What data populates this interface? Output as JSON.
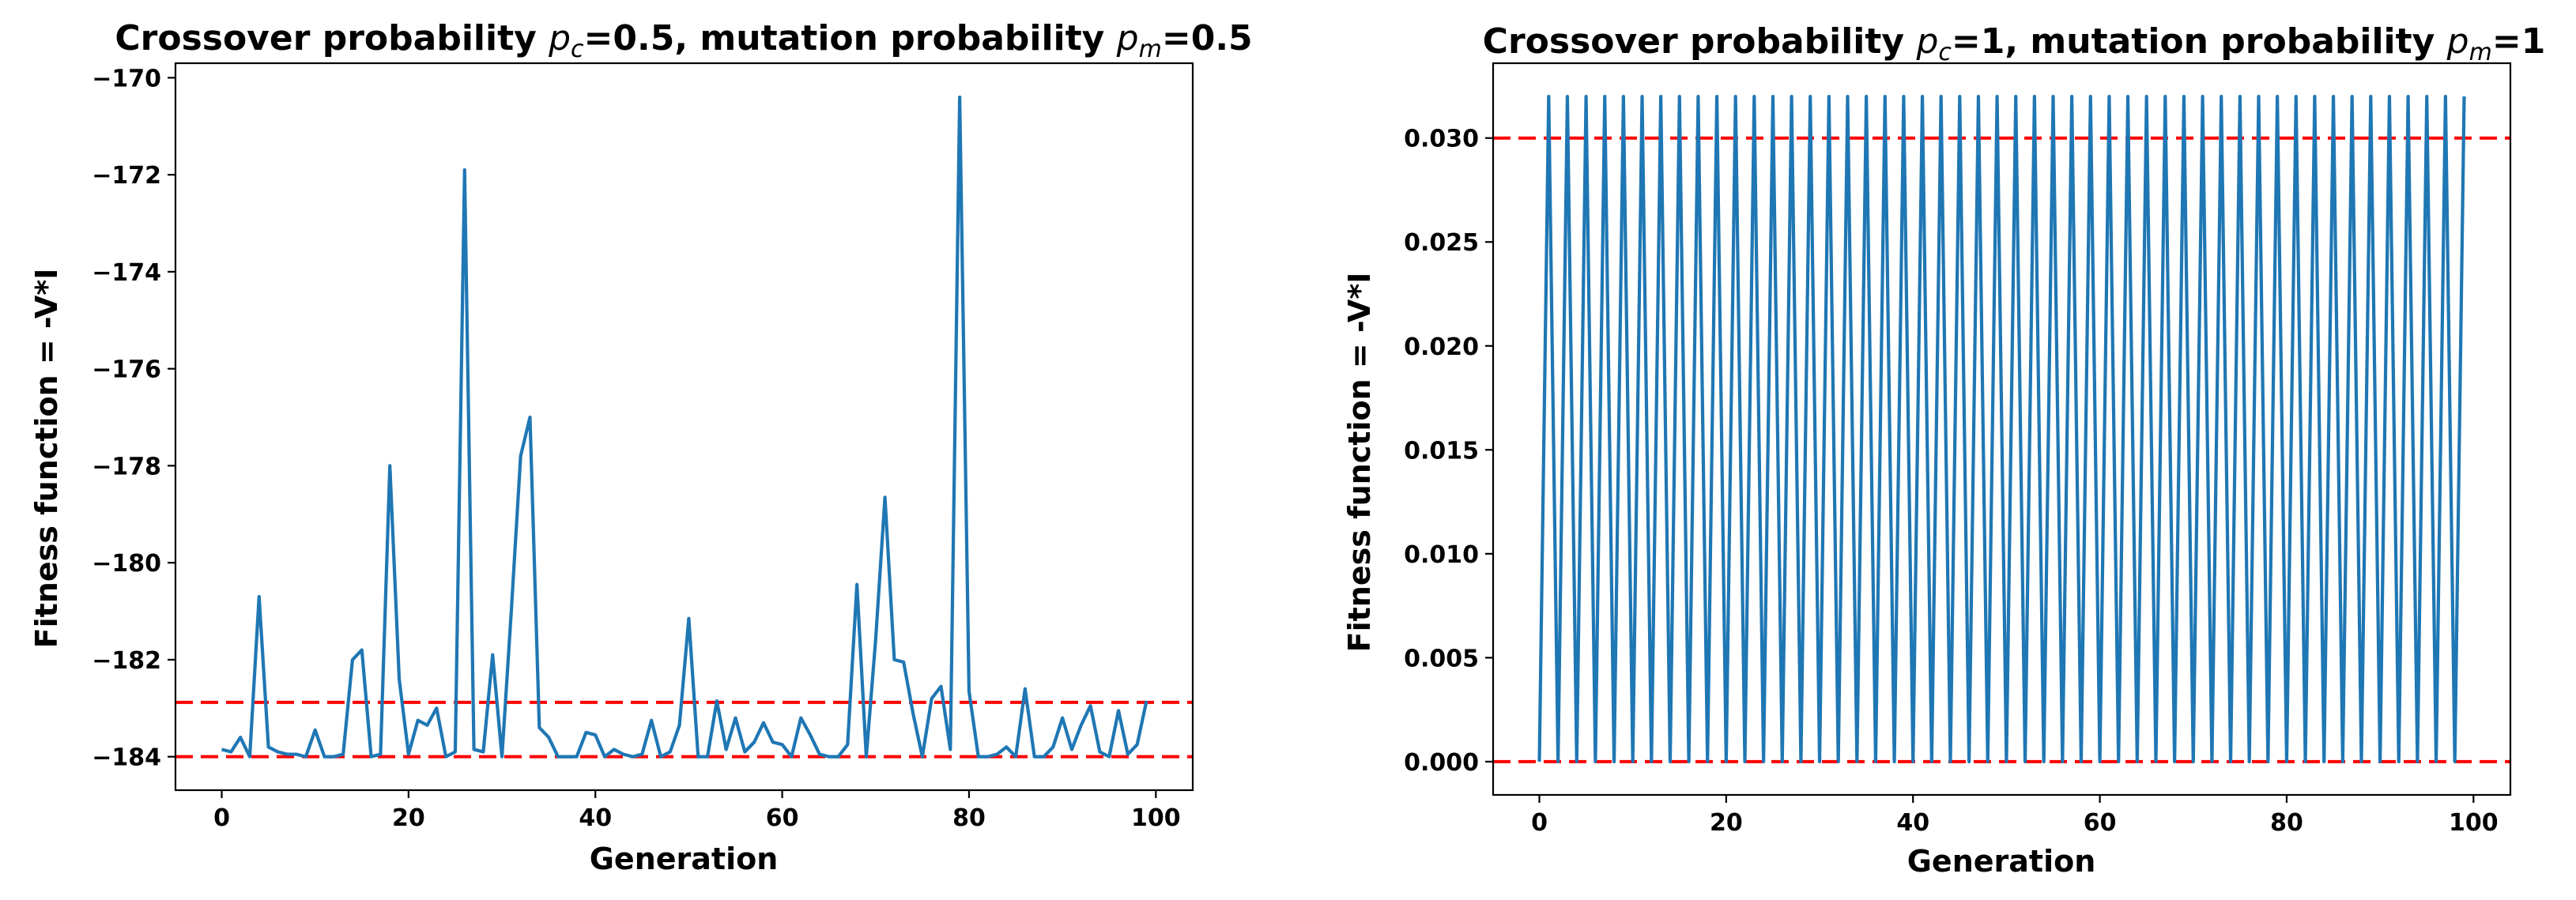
{
  "chart_data": [
    {
      "type": "line",
      "title_parts": {
        "a": "Crossover probability ",
        "pc": "p",
        "pc_sub": "c",
        "b": "=0.5, mutation probability ",
        "pm": "p",
        "pm_sub": "m",
        "c": "=0.5"
      },
      "xlabel": "Generation",
      "ylabel": "Fitness function = -V*I",
      "xlim": [
        -4.95,
        103.95
      ],
      "ylim": [
        -184.69,
        -169.7
      ],
      "xticks": [
        0,
        20,
        40,
        60,
        80,
        100
      ],
      "yticks": [
        -184,
        -182,
        -180,
        -178,
        -176,
        -174,
        -172,
        -170
      ],
      "x": [
        0,
        1,
        2,
        3,
        4,
        5,
        6,
        7,
        8,
        9,
        10,
        11,
        12,
        13,
        14,
        15,
        16,
        17,
        18,
        19,
        20,
        21,
        22,
        23,
        24,
        25,
        26,
        27,
        28,
        29,
        30,
        31,
        32,
        33,
        34,
        35,
        36,
        37,
        38,
        39,
        40,
        41,
        42,
        43,
        44,
        45,
        46,
        47,
        48,
        49,
        50,
        51,
        52,
        53,
        54,
        55,
        56,
        57,
        58,
        59,
        60,
        61,
        62,
        63,
        64,
        65,
        66,
        67,
        68,
        69,
        70,
        71,
        72,
        73,
        74,
        75,
        76,
        77,
        78,
        79,
        80,
        81,
        82,
        83,
        84,
        85,
        86,
        87,
        88,
        89,
        90,
        91,
        92,
        93,
        94,
        95,
        96,
        97,
        98,
        99
      ],
      "series": [
        {
          "name": "fitness",
          "values": [
            -183.85,
            -183.9,
            -183.6,
            -184.0,
            -180.7,
            -183.8,
            -183.9,
            -183.95,
            -183.95,
            -184.0,
            -183.45,
            -184.0,
            -184.0,
            -183.95,
            -182.0,
            -181.8,
            -184.0,
            -183.95,
            -178.0,
            -182.4,
            -183.95,
            -183.25,
            -183.35,
            -183.0,
            -184.0,
            -183.9,
            -171.9,
            -183.85,
            -183.9,
            -181.9,
            -184.0,
            -181.0,
            -177.8,
            -177.0,
            -183.4,
            -183.6,
            -184.0,
            -184.0,
            -184.0,
            -183.5,
            -183.55,
            -184.0,
            -183.85,
            -183.95,
            -184.0,
            -183.95,
            -183.25,
            -184.0,
            -183.9,
            -183.35,
            -181.15,
            -184.0,
            -184.0,
            -182.85,
            -183.85,
            -183.2,
            -183.9,
            -183.7,
            -183.3,
            -183.7,
            -183.75,
            -184.0,
            -183.2,
            -183.55,
            -183.95,
            -184.0,
            -184.0,
            -183.75,
            -180.45,
            -184.0,
            -181.6,
            -178.65,
            -182.0,
            -182.05,
            -183.1,
            -184.0,
            -182.8,
            -182.55,
            -183.85,
            -170.4,
            -182.65,
            -184.0,
            -184.0,
            -183.95,
            -183.8,
            -184.0,
            -182.6,
            -184.0,
            -184.0,
            -183.8,
            -183.2,
            -183.85,
            -183.35,
            -182.95,
            -183.9,
            -184.0,
            -183.05,
            -183.95,
            -183.75,
            -182.85
          ]
        }
      ],
      "reference_lines": [
        -184.0,
        -182.88
      ],
      "colors": {
        "series": "#1f77b4",
        "reference": "#ff0000"
      }
    },
    {
      "type": "line",
      "title_parts": {
        "a": "Crossover probability ",
        "pc": "p",
        "pc_sub": "c",
        "b": "=1, mutation probability ",
        "pm": "p",
        "pm_sub": "m",
        "c": "=1"
      },
      "xlabel": "Generation",
      "ylabel": "Fitness function = -V*I",
      "xlim": [
        -4.95,
        103.95
      ],
      "ylim": [
        -0.0016,
        0.0336
      ],
      "xticks": [
        0,
        20,
        40,
        60,
        80,
        100
      ],
      "yticks": [
        0.0,
        0.005,
        0.01,
        0.015,
        0.02,
        0.025,
        0.03
      ],
      "ytick_format": 3,
      "x": [
        0,
        1,
        2,
        3,
        4,
        5,
        6,
        7,
        8,
        9,
        10,
        11,
        12,
        13,
        14,
        15,
        16,
        17,
        18,
        19,
        20,
        21,
        22,
        23,
        24,
        25,
        26,
        27,
        28,
        29,
        30,
        31,
        32,
        33,
        34,
        35,
        36,
        37,
        38,
        39,
        40,
        41,
        42,
        43,
        44,
        45,
        46,
        47,
        48,
        49,
        50,
        51,
        52,
        53,
        54,
        55,
        56,
        57,
        58,
        59,
        60,
        61,
        62,
        63,
        64,
        65,
        66,
        67,
        68,
        69,
        70,
        71,
        72,
        73,
        74,
        75,
        76,
        77,
        78,
        79,
        80,
        81,
        82,
        83,
        84,
        85,
        86,
        87,
        88,
        89,
        90,
        91,
        92,
        93,
        94,
        95,
        96,
        97,
        98,
        99
      ],
      "series": [
        {
          "name": "fitness",
          "values": [
            0,
            0.032,
            0,
            0.032,
            0,
            0.032,
            0,
            0.032,
            0,
            0.032,
            0,
            0.032,
            0,
            0.032,
            0,
            0.032,
            0,
            0.032,
            0,
            0.032,
            0,
            0.032,
            0,
            0.032,
            0,
            0.032,
            0,
            0.032,
            0,
            0.032,
            0,
            0.032,
            0,
            0.032,
            0,
            0.032,
            0,
            0.032,
            0,
            0.032,
            0,
            0.032,
            0,
            0.032,
            0,
            0.032,
            0,
            0.032,
            0,
            0.032,
            0,
            0.032,
            0,
            0.032,
            0,
            0.032,
            0,
            0.032,
            0,
            0.032,
            0,
            0.032,
            0,
            0.032,
            0,
            0.032,
            0,
            0.032,
            0,
            0.032,
            0,
            0.032,
            0,
            0.032,
            0,
            0.032,
            0,
            0.032,
            0,
            0.032,
            0,
            0.032,
            0,
            0.032,
            0,
            0.032,
            0,
            0.032,
            0,
            0.032,
            0,
            0.032,
            0,
            0.032,
            0,
            0.032,
            0,
            0.032,
            0,
            0.032
          ]
        }
      ],
      "reference_lines": [
        0.0,
        0.03
      ],
      "colors": {
        "series": "#1f77b4",
        "reference": "#ff0000"
      }
    }
  ]
}
